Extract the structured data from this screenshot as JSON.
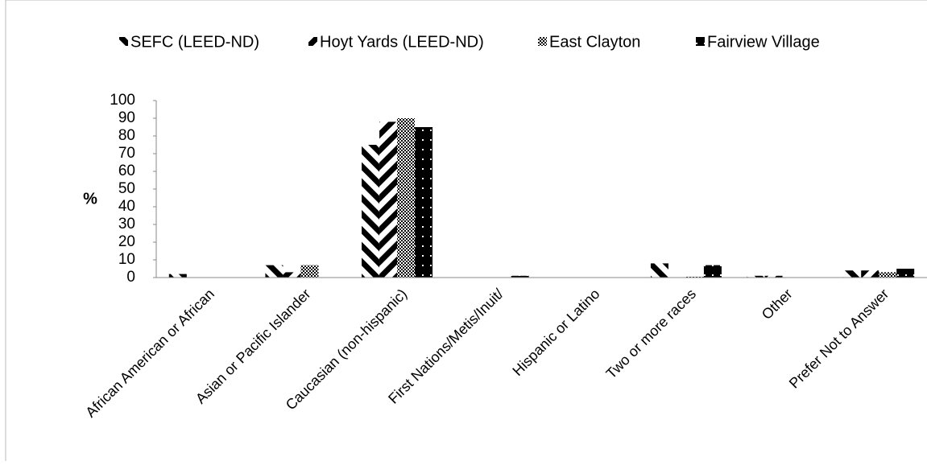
{
  "chart_data": {
    "type": "bar",
    "categories": [
      "African American or African",
      "Asian or Pacific Islander",
      "Caucasian (non-hispanic)",
      "First Nations/Metis/Inuit/",
      "Hispanic or Latino",
      "Two or more races",
      "Other",
      "Prefer Not to Answer"
    ],
    "series": [
      {
        "name": "SEFC  (LEED-ND)",
        "color": "#000000",
        "pattern": "back-diagonal",
        "values": [
          2,
          7,
          75,
          0,
          0,
          8,
          1,
          4
        ]
      },
      {
        "name": "Hoyt Yards (LEED-ND)",
        "color": "#000000",
        "pattern": "forward-diagonal",
        "values": [
          0,
          3,
          88,
          0,
          0,
          0,
          1,
          4
        ]
      },
      {
        "name": "East Clayton",
        "color": "#000000",
        "pattern": "checker",
        "values": [
          0,
          7,
          90,
          0,
          0,
          0.5,
          0,
          3
        ]
      },
      {
        "name": "Fairview Village",
        "color": "#000000",
        "pattern": "dots",
        "values": [
          0,
          0,
          85,
          1,
          0,
          7,
          0,
          5
        ]
      }
    ],
    "ylabel": "%",
    "ylim": [
      0,
      100
    ],
    "yticks": [
      0,
      10,
      20,
      30,
      40,
      50,
      60,
      70,
      80,
      90,
      100
    ],
    "legend": "top",
    "grid": false
  }
}
